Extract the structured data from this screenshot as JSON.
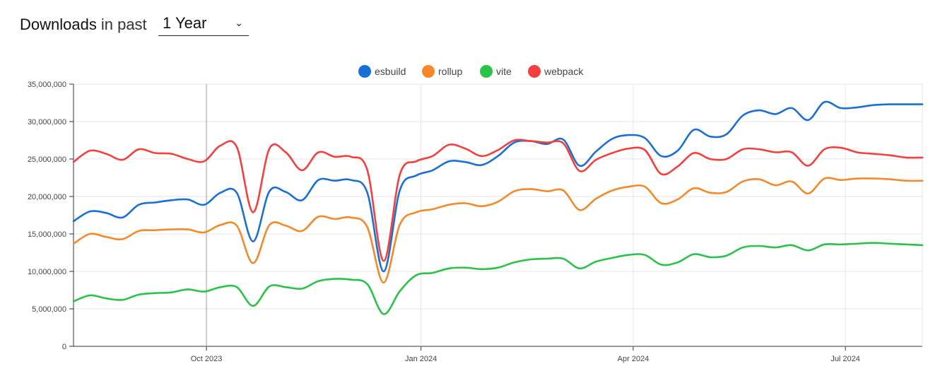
{
  "header": {
    "title_strong": "Downloads",
    "title_rest": "in past",
    "period_selected": "1 Year"
  },
  "icons": {
    "period_dropdown": "chevron-down-icon"
  },
  "chart_data": {
    "type": "line",
    "title": "",
    "xlabel": "",
    "ylabel": "",
    "ylim": [
      0,
      35000000
    ],
    "yticks": [
      0,
      5000000,
      10000000,
      15000000,
      20000000,
      25000000,
      30000000,
      35000000
    ],
    "ytick_labels": [
      "0",
      "5,000,000",
      "10,000,000",
      "15,000,000",
      "20,000,000",
      "25,000,000",
      "30,000,000",
      "35,000,000"
    ],
    "xlim": [
      "2023-08-05",
      "2024-08-03"
    ],
    "xticks": [
      "2023-10-01",
      "2024-01-01",
      "2024-04-01",
      "2024-07-01"
    ],
    "xtick_labels": [
      "Oct 2023",
      "Jan 2024",
      "Apr 2024",
      "Jul 2024"
    ],
    "grid": true,
    "legend_position": "top-center",
    "x": [
      "2023-08-05",
      "2023-08-12",
      "2023-08-19",
      "2023-08-26",
      "2023-09-02",
      "2023-09-09",
      "2023-09-16",
      "2023-09-23",
      "2023-09-30",
      "2023-10-07",
      "2023-10-14",
      "2023-10-21",
      "2023-10-28",
      "2023-11-04",
      "2023-11-11",
      "2023-11-18",
      "2023-11-25",
      "2023-12-02",
      "2023-12-09",
      "2023-12-16",
      "2023-12-23",
      "2023-12-30",
      "2024-01-06",
      "2024-01-13",
      "2024-01-20",
      "2024-01-27",
      "2024-02-03",
      "2024-02-10",
      "2024-02-17",
      "2024-02-24",
      "2024-03-02",
      "2024-03-09",
      "2024-03-16",
      "2024-03-23",
      "2024-03-30",
      "2024-04-06",
      "2024-04-13",
      "2024-04-20",
      "2024-04-27",
      "2024-05-04",
      "2024-05-11",
      "2024-05-18",
      "2024-05-25",
      "2024-06-01",
      "2024-06-08",
      "2024-06-15",
      "2024-06-22",
      "2024-06-29",
      "2024-07-06",
      "2024-07-13",
      "2024-07-20",
      "2024-07-27",
      "2024-08-03"
    ],
    "series": [
      {
        "name": "esbuild",
        "color": "#1a6fd6",
        "values": [
          16700000,
          18000000,
          17800000,
          17200000,
          18900000,
          19200000,
          19500000,
          19600000,
          18900000,
          20500000,
          20500000,
          14000000,
          20700000,
          20600000,
          19500000,
          22200000,
          22100000,
          22200000,
          20500000,
          10000000,
          20900000,
          22800000,
          23500000,
          24700000,
          24600000,
          24200000,
          25400000,
          27200000,
          27400000,
          27000000,
          27600000,
          24100000,
          26000000,
          27700000,
          28200000,
          27800000,
          25400000,
          26100000,
          28900000,
          28000000,
          28300000,
          30800000,
          31500000,
          31000000,
          31800000,
          30200000,
          32600000,
          31800000,
          31900000,
          32200000,
          32300000,
          32300000,
          32300000
        ]
      },
      {
        "name": "rollup",
        "color": "#f5892a",
        "values": [
          13700000,
          15000000,
          14600000,
          14300000,
          15400000,
          15500000,
          15600000,
          15600000,
          15200000,
          16200000,
          16100000,
          11100000,
          16200000,
          16100000,
          15400000,
          17300000,
          17000000,
          17200000,
          15900000,
          8500000,
          16300000,
          17900000,
          18300000,
          18900000,
          19100000,
          18700000,
          19300000,
          20700000,
          21000000,
          20700000,
          20800000,
          18200000,
          19700000,
          20800000,
          21300000,
          21300000,
          19100000,
          19600000,
          21100000,
          20500000,
          20600000,
          22000000,
          22300000,
          21500000,
          22000000,
          20400000,
          22400000,
          22200000,
          22400000,
          22400000,
          22300000,
          22100000,
          22100000
        ]
      },
      {
        "name": "vite",
        "color": "#2bc24a",
        "values": [
          6000000,
          6800000,
          6400000,
          6200000,
          6900000,
          7100000,
          7200000,
          7600000,
          7300000,
          7900000,
          7900000,
          5400000,
          8000000,
          7900000,
          7700000,
          8700000,
          9000000,
          8900000,
          8300000,
          4300000,
          7400000,
          9500000,
          9800000,
          10400000,
          10500000,
          10300000,
          10500000,
          11200000,
          11600000,
          11700000,
          11700000,
          10400000,
          11300000,
          11800000,
          12200000,
          12200000,
          10900000,
          11200000,
          12300000,
          11900000,
          12100000,
          13200000,
          13400000,
          13200000,
          13500000,
          12800000,
          13600000,
          13600000,
          13700000,
          13800000,
          13700000,
          13600000,
          13500000
        ]
      },
      {
        "name": "webpack",
        "color": "#f53f3f",
        "values": [
          24600000,
          26100000,
          25700000,
          24900000,
          26300000,
          25800000,
          25700000,
          25000000,
          24700000,
          26800000,
          26600000,
          17900000,
          26400000,
          25900000,
          23500000,
          25900000,
          25300000,
          25300000,
          23500000,
          11400000,
          23000000,
          24700000,
          25400000,
          26900000,
          26400000,
          25400000,
          26200000,
          27500000,
          27400000,
          27200000,
          27100000,
          23400000,
          24900000,
          25800000,
          26400000,
          26200000,
          23000000,
          24000000,
          25800000,
          25000000,
          25000000,
          26300000,
          26300000,
          25900000,
          25900000,
          24100000,
          26300000,
          26500000,
          25900000,
          25700000,
          25500000,
          25200000,
          25200000
        ]
      }
    ]
  }
}
